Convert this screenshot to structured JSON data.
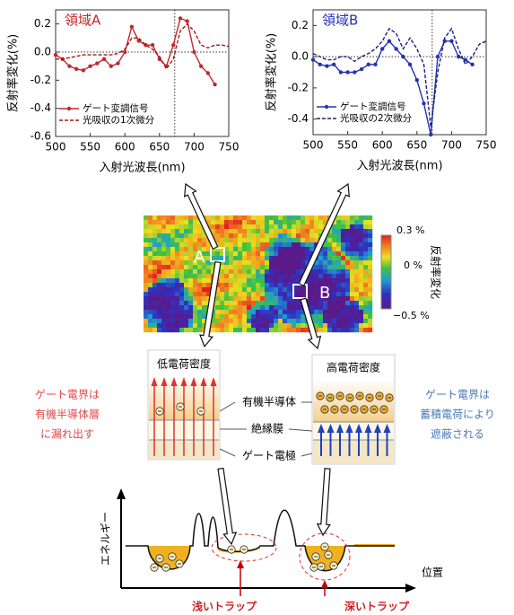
{
  "chart_data": [
    {
      "type": "line",
      "title": "領域A",
      "xlabel": "入射光波長(nm)",
      "ylabel": "反射率変化(%)",
      "x": [
        500,
        510,
        520,
        530,
        540,
        550,
        560,
        570,
        580,
        590,
        600,
        610,
        620,
        630,
        640,
        650,
        660,
        670,
        680,
        690,
        700,
        710,
        720,
        730,
        740,
        750
      ],
      "series": [
        {
          "name": "ゲート変調信号",
          "color": "#c0282d",
          "linestyle": "solid",
          "marker": true,
          "values": [
            -0.02,
            -0.05,
            -0.1,
            -0.12,
            -0.13,
            -0.1,
            -0.08,
            -0.05,
            -0.1,
            -0.08,
            0.0,
            0.18,
            0.08,
            0.05,
            0.05,
            -0.05,
            -0.1,
            0.05,
            0.24,
            0.22,
            0.0,
            -0.1,
            -0.15,
            -0.23,
            null,
            null
          ]
        },
        {
          "name": "光吸収の1次微分",
          "color": "#a01818",
          "linestyle": "dashed",
          "marker": false,
          "values": [
            -0.05,
            -0.05,
            -0.04,
            -0.03,
            -0.02,
            -0.02,
            -0.02,
            -0.02,
            -0.02,
            -0.01,
            0.02,
            0.1,
            0.1,
            0.05,
            0.02,
            -0.03,
            -0.12,
            -0.05,
            0.15,
            0.2,
            0.15,
            0.05,
            0.03,
            0.05,
            0.05,
            0.04
          ]
        }
      ],
      "xlim": [
        500,
        750
      ],
      "xticks": [
        500,
        550,
        600,
        650,
        700,
        750
      ],
      "ylim": [
        -0.6,
        0.3
      ],
      "yticks": [
        -0.6,
        -0.4,
        -0.2,
        {
          "value": 0,
          "label": "0.0"
        },
        0.2
      ],
      "vline": 672,
      "hline": 0,
      "legend": "lower left"
    },
    {
      "type": "line",
      "title": "領域B",
      "xlabel": "入射光波長(nm)",
      "ylabel": "反射率変化(%)",
      "x": [
        500,
        510,
        520,
        530,
        540,
        550,
        560,
        570,
        580,
        590,
        600,
        610,
        620,
        630,
        640,
        650,
        660,
        670,
        680,
        690,
        700,
        710,
        720,
        730,
        740,
        750
      ],
      "series": [
        {
          "name": "ゲート変調信号",
          "color": "#2434b0",
          "linestyle": "solid",
          "marker": true,
          "values": [
            -0.02,
            -0.05,
            -0.06,
            -0.05,
            -0.1,
            -0.1,
            -0.1,
            -0.08,
            -0.05,
            -0.05,
            0.05,
            0.1,
            0.05,
            0.0,
            -0.05,
            -0.15,
            -0.3,
            -0.5,
            0.0,
            0.1,
            0.1,
            0.0,
            -0.02,
            -0.05,
            null,
            null
          ]
        },
        {
          "name": "光吸収の2次微分",
          "color": "#1a2080",
          "linestyle": "dashed",
          "marker": false,
          "values": [
            0.02,
            0.0,
            -0.02,
            -0.02,
            0.0,
            0.0,
            -0.03,
            0.0,
            0.02,
            0.05,
            0.1,
            0.18,
            0.15,
            0.05,
            0.12,
            0.05,
            -0.05,
            -0.45,
            -0.1,
            0.12,
            0.18,
            0.05,
            -0.05,
            0.0,
            0.08,
            0.1
          ]
        }
      ],
      "xlim": [
        500,
        750
      ],
      "xticks": [
        500,
        550,
        600,
        650,
        700,
        750
      ],
      "ylim": [
        -0.5,
        0.3
      ],
      "yticks": [
        -0.4,
        -0.2,
        {
          "value": 0,
          "label": "0.0"
        },
        0.2
      ],
      "vline": 672,
      "hline": 0,
      "legend": "lower left"
    }
  ],
  "heatmap": {
    "label_a": "A",
    "label_b": "B",
    "colorbar_max": "0.3 %",
    "colorbar_mid": "0 %",
    "colorbar_min": "−0.5 %",
    "colorbar_title": "反射率変化"
  },
  "panels": {
    "low": "低電荷密度",
    "high": "高電荷密度",
    "layer_semiconductor": "有機半導体",
    "layer_insulator": "絶縁膜",
    "layer_electrode": "ゲート電極"
  },
  "notes": {
    "left": [
      "ゲート電界は",
      "有機半導体層",
      "に漏れ出す"
    ],
    "right": [
      "ゲート電界は",
      "蓄積電荷により",
      "遮蔽される"
    ]
  },
  "energy": {
    "y_label": "エネルギー",
    "x_label": "位置",
    "shallow": "浅いトラップ",
    "deep": "深いトラップ"
  }
}
